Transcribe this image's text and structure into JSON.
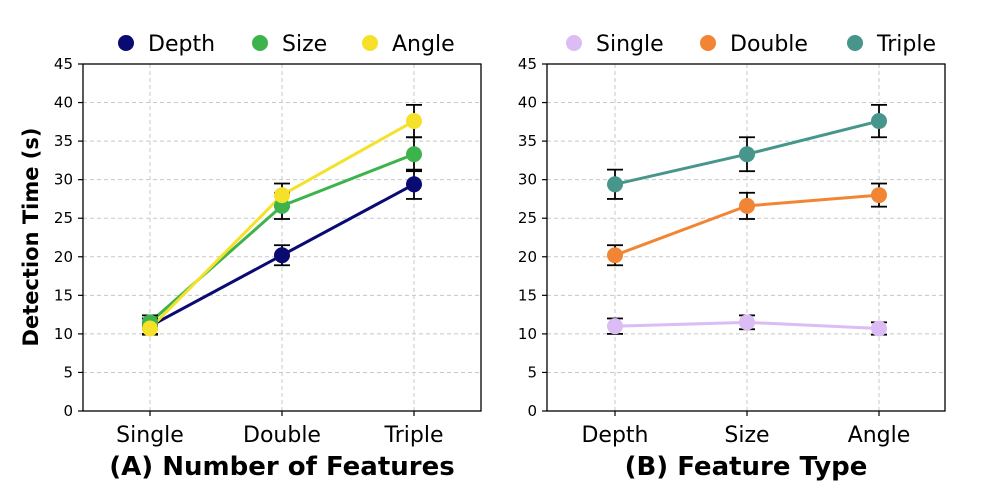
{
  "ylabel": "Detection Time (s)",
  "chart_data": [
    {
      "type": "line",
      "xlabel": "(A) Number of Features",
      "ylabel": "Detection Time (s)",
      "categories": [
        "Single",
        "Double",
        "Triple"
      ],
      "ylim": [
        0,
        45
      ],
      "yticks": [
        0,
        5,
        10,
        15,
        20,
        25,
        30,
        35,
        40,
        45
      ],
      "grid": true,
      "legend_position": "top",
      "series": [
        {
          "name": "Depth",
          "color": "#0a0a73",
          "values": [
            11.0,
            20.2,
            29.4
          ],
          "errors": [
            1.0,
            1.3,
            1.9
          ]
        },
        {
          "name": "Size",
          "color": "#3cb44b",
          "values": [
            11.5,
            26.6,
            33.3
          ],
          "errors": [
            0.9,
            1.7,
            2.2
          ]
        },
        {
          "name": "Angle",
          "color": "#f5e12a",
          "values": [
            10.7,
            28.0,
            37.6
          ],
          "errors": [
            0.8,
            1.5,
            2.1
          ]
        }
      ]
    },
    {
      "type": "line",
      "xlabel": "(B) Feature Type",
      "ylabel": "",
      "categories": [
        "Depth",
        "Size",
        "Angle"
      ],
      "ylim": [
        0,
        45
      ],
      "yticks": [
        0,
        5,
        10,
        15,
        20,
        25,
        30,
        35,
        40,
        45
      ],
      "grid": true,
      "legend_position": "top",
      "series": [
        {
          "name": "Single",
          "color": "#dcbcf5",
          "values": [
            11.0,
            11.5,
            10.7
          ],
          "errors": [
            1.0,
            0.9,
            0.8
          ]
        },
        {
          "name": "Double",
          "color": "#f28533",
          "values": [
            20.2,
            26.6,
            28.0
          ],
          "errors": [
            1.3,
            1.7,
            1.5
          ]
        },
        {
          "name": "Triple",
          "color": "#46968c",
          "values": [
            29.4,
            33.3,
            37.6
          ],
          "errors": [
            1.9,
            2.2,
            2.1
          ]
        }
      ]
    }
  ]
}
